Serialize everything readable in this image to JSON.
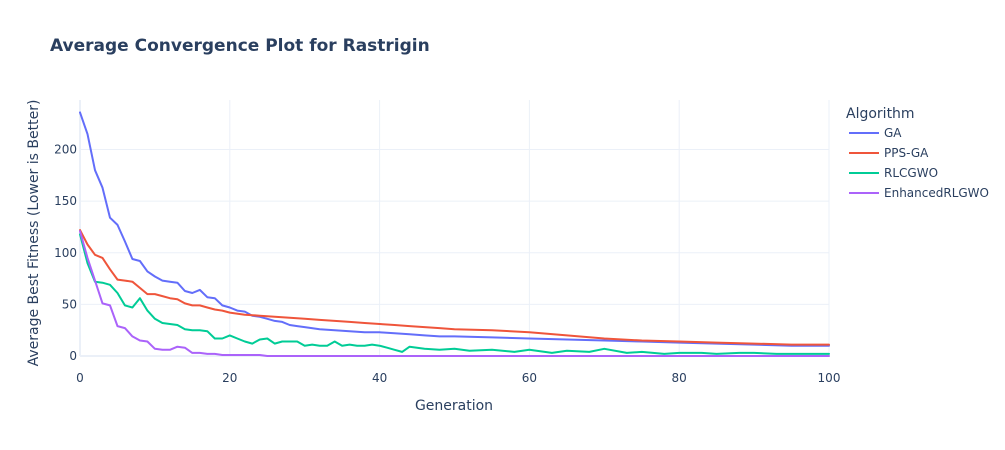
{
  "chart_data": {
    "type": "line",
    "title": "Average Convergence Plot for Rastrigin",
    "xlabel": "Generation",
    "ylabel": "Average Best Fitness (Lower is Better)",
    "xlim": [
      0,
      100
    ],
    "ylim": [
      0,
      250
    ],
    "xticks": [
      0,
      20,
      40,
      60,
      80,
      100
    ],
    "yticks": [
      0,
      50,
      100,
      150,
      200
    ],
    "grid": true,
    "legend": {
      "title": "Algorithm",
      "placement": "right"
    },
    "series": [
      {
        "name": "GA",
        "color": "#636efa",
        "x": [
          0,
          1,
          2,
          3,
          4,
          5,
          6,
          7,
          8,
          9,
          10,
          11,
          12,
          13,
          14,
          15,
          16,
          17,
          18,
          19,
          20,
          21,
          22,
          23,
          24,
          25,
          26,
          27,
          28,
          29,
          30,
          32,
          34,
          36,
          38,
          40,
          42,
          44,
          46,
          48,
          50,
          55,
          60,
          65,
          70,
          75,
          80,
          85,
          90,
          95,
          100
        ],
        "y": [
          236,
          215,
          180,
          163,
          134,
          127,
          111,
          94,
          92,
          82,
          77,
          73,
          72,
          71,
          63,
          61,
          64,
          57,
          56,
          49,
          47,
          44,
          43,
          39,
          38,
          36,
          34,
          33,
          30,
          29,
          28,
          26,
          25,
          24,
          23,
          23,
          22,
          21,
          20,
          19,
          19,
          18,
          17,
          16,
          15,
          14,
          13,
          12,
          11,
          10,
          10
        ]
      },
      {
        "name": "PPS-GA",
        "color": "#ef553b",
        "x": [
          0,
          1,
          2,
          3,
          4,
          5,
          6,
          7,
          8,
          9,
          10,
          11,
          12,
          13,
          14,
          15,
          16,
          17,
          18,
          19,
          20,
          22,
          24,
          26,
          28,
          30,
          32,
          34,
          36,
          38,
          40,
          42,
          44,
          46,
          48,
          50,
          55,
          60,
          65,
          70,
          75,
          80,
          85,
          90,
          95,
          100
        ],
        "y": [
          122,
          108,
          98,
          95,
          84,
          74,
          73,
          72,
          66,
          60,
          60,
          58,
          56,
          55,
          51,
          49,
          49,
          47,
          45,
          44,
          42,
          40,
          39,
          38,
          37,
          36,
          35,
          34,
          33,
          32,
          31,
          30,
          29,
          28,
          27,
          26,
          25,
          23,
          20,
          17,
          15,
          14,
          13,
          12,
          11,
          11
        ]
      },
      {
        "name": "RLCGWO",
        "color": "#00cc96",
        "x": [
          0,
          1,
          2,
          3,
          4,
          5,
          6,
          7,
          8,
          9,
          10,
          11,
          12,
          13,
          14,
          15,
          16,
          17,
          18,
          19,
          20,
          21,
          22,
          23,
          24,
          25,
          26,
          27,
          28,
          29,
          30,
          31,
          32,
          33,
          34,
          35,
          36,
          37,
          38,
          39,
          40,
          41,
          42,
          43,
          44,
          46,
          48,
          50,
          52,
          55,
          58,
          60,
          63,
          65,
          68,
          70,
          73,
          75,
          78,
          80,
          83,
          85,
          88,
          90,
          93,
          95,
          98,
          100
        ],
        "y": [
          118,
          90,
          72,
          71,
          69,
          61,
          49,
          47,
          56,
          44,
          36,
          32,
          31,
          30,
          26,
          25,
          25,
          24,
          17,
          17,
          20,
          17,
          14,
          12,
          16,
          17,
          12,
          14,
          14,
          14,
          10,
          11,
          10,
          10,
          14,
          10,
          11,
          10,
          10,
          11,
          10,
          8,
          6,
          4,
          9,
          7,
          6,
          7,
          5,
          6,
          4,
          6,
          3,
          5,
          4,
          7,
          3,
          4,
          2,
          3,
          3,
          2,
          3,
          3,
          2,
          2,
          2,
          2
        ]
      },
      {
        "name": "EnhancedRLGWO",
        "color": "#ab63fa",
        "x": [
          0,
          1,
          2,
          3,
          4,
          5,
          6,
          7,
          8,
          9,
          10,
          11,
          12,
          13,
          14,
          15,
          16,
          17,
          18,
          19,
          20,
          22,
          23,
          24,
          25,
          30,
          40,
          60,
          80,
          100
        ],
        "y": [
          121,
          95,
          73,
          51,
          49,
          29,
          27,
          19,
          15,
          14,
          7,
          6,
          6,
          9,
          8,
          3,
          3,
          2,
          2,
          1,
          1,
          1,
          1,
          1,
          0,
          0,
          0,
          0,
          0,
          0
        ]
      }
    ]
  }
}
